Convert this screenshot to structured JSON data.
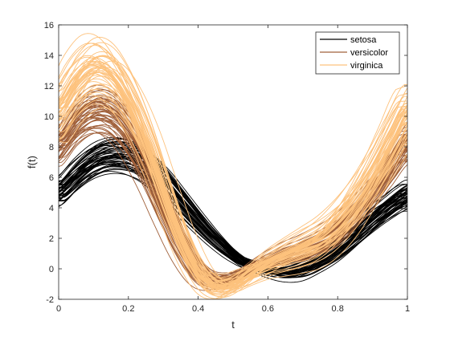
{
  "chart_data": {
    "type": "line",
    "title": "",
    "xlabel": "t",
    "ylabel": "f(t)",
    "xlim": [
      0,
      1
    ],
    "ylim": [
      -2,
      16
    ],
    "xticks": [
      0,
      0.2,
      0.4,
      0.6,
      0.8,
      1
    ],
    "xtick_labels": [
      "0",
      "0.2",
      "0.4",
      "0.6",
      "0.8",
      "1"
    ],
    "yticks": [
      -2,
      0,
      2,
      4,
      6,
      8,
      10,
      12,
      14,
      16
    ],
    "ytick_labels": [
      "-2",
      "0",
      "2",
      "4",
      "6",
      "8",
      "10",
      "12",
      "14",
      "16"
    ],
    "grid": false,
    "legend_position": "top-right",
    "x": [
      0,
      0.05,
      0.1,
      0.15,
      0.2,
      0.25,
      0.3,
      0.35,
      0.4,
      0.45,
      0.5,
      0.55,
      0.6,
      0.65,
      0.7,
      0.75,
      0.8,
      0.85,
      0.9,
      0.95,
      1
    ],
    "series": [
      {
        "name": "setosa",
        "color": "#000000",
        "curve_count": 50,
        "values": [
          5.0,
          6.1,
          7.0,
          7.4,
          7.3,
          6.7,
          5.7,
          4.4,
          3.1,
          1.9,
          0.9,
          0.2,
          -0.1,
          -0.2,
          0.0,
          0.6,
          1.3,
          2.2,
          3.2,
          4.1,
          4.8
        ],
        "spread": 0.9
      },
      {
        "name": "versicolor",
        "color": "#a0603a",
        "curve_count": 50,
        "values": [
          8.0,
          9.5,
          10.3,
          10.1,
          8.9,
          6.8,
          4.2,
          1.7,
          -0.1,
          -0.8,
          -0.6,
          0.0,
          0.5,
          0.9,
          1.2,
          1.7,
          2.4,
          3.6,
          5.0,
          6.6,
          8.2
        ],
        "spread": 1.3
      },
      {
        "name": "virginica",
        "color": "#fdc27d",
        "curve_count": 50,
        "values": [
          10.5,
          12.3,
          13.3,
          12.9,
          11.2,
          8.6,
          5.3,
          2.2,
          -0.1,
          -1.1,
          -1.0,
          -0.3,
          0.4,
          0.9,
          1.4,
          2.0,
          3.0,
          4.4,
          6.2,
          8.3,
          10.4
        ],
        "spread": 1.7
      }
    ]
  }
}
